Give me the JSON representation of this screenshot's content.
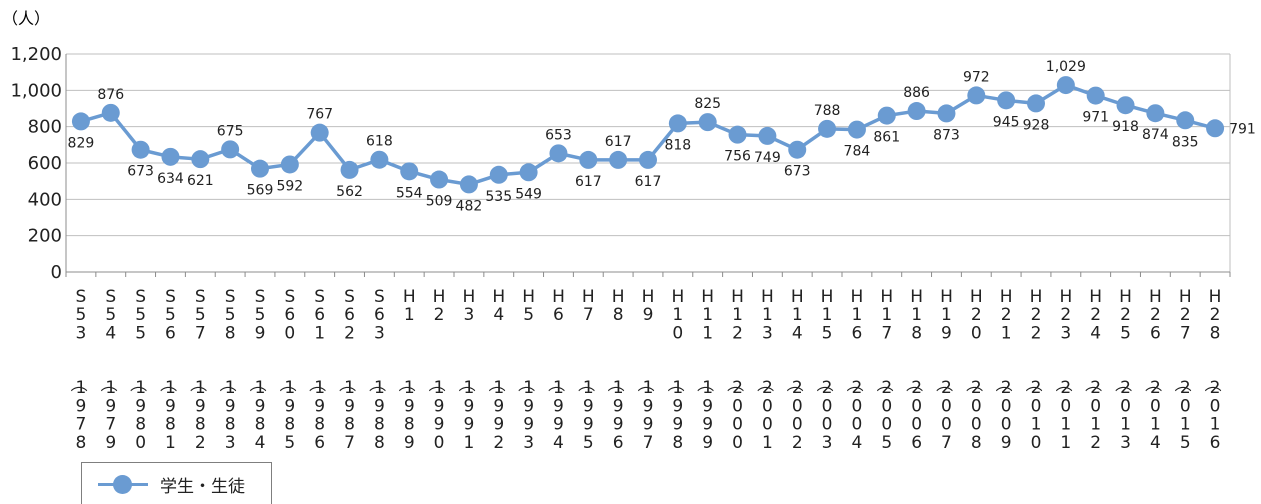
{
  "chart_data": {
    "type": "line",
    "unit_label": "（人）",
    "yticks": [
      "0",
      "200",
      "400",
      "600",
      "800",
      "1,000",
      "1,200"
    ],
    "ylim": [
      0,
      1200
    ],
    "categories": [
      "S53（1978）",
      "S54（1979）",
      "S55（1980）",
      "S56（1981）",
      "S57（1982）",
      "S58（1983）",
      "S59（1984）",
      "S60（1985）",
      "S61（1986）",
      "S62（1987）",
      "S63（1988）",
      "H1（1989）",
      "H2（1990）",
      "H3（1991）",
      "H4（1992）",
      "H5（1993）",
      "H6（1994）",
      "H7（1995）",
      "H8（1996）",
      "H9（1997）",
      "H10（1998）",
      "H11（1999）",
      "H12（2000）",
      "H13（2001）",
      "H14（2002）",
      "H15（2003）",
      "H16（2004）",
      "H17（2005）",
      "H18（2006）",
      "H19（2007）",
      "H20（2008）",
      "H21（2009）",
      "H22（2010）",
      "H23（2011）",
      "H24（2012）",
      "H25（2013）",
      "H26（2014）",
      "H27（2015）",
      "H28（2016）"
    ],
    "series": [
      {
        "name": "学生・生徒",
        "color": "#6a9bd2",
        "values": [
          829,
          876,
          673,
          634,
          621,
          675,
          569,
          592,
          767,
          562,
          618,
          554,
          509,
          482,
          535,
          549,
          653,
          617,
          617,
          617,
          818,
          825,
          756,
          749,
          673,
          788,
          784,
          861,
          886,
          873,
          972,
          945,
          928,
          1029,
          971,
          918,
          874,
          835,
          791
        ],
        "labels": [
          "829",
          "876",
          "673",
          "634",
          "621",
          "675",
          "569",
          "592",
          "767",
          "562",
          "618",
          "554",
          "509",
          "482",
          "535",
          "549",
          "653",
          "617",
          "617",
          "617",
          "818",
          "825",
          "756",
          "749",
          "673",
          "788",
          "784",
          "861",
          "886",
          "873",
          "972",
          "945",
          "928",
          "1,029",
          "971",
          "918",
          "874",
          "835",
          "791"
        ]
      }
    ],
    "grid": true,
    "legend_position": "bottom-left"
  }
}
